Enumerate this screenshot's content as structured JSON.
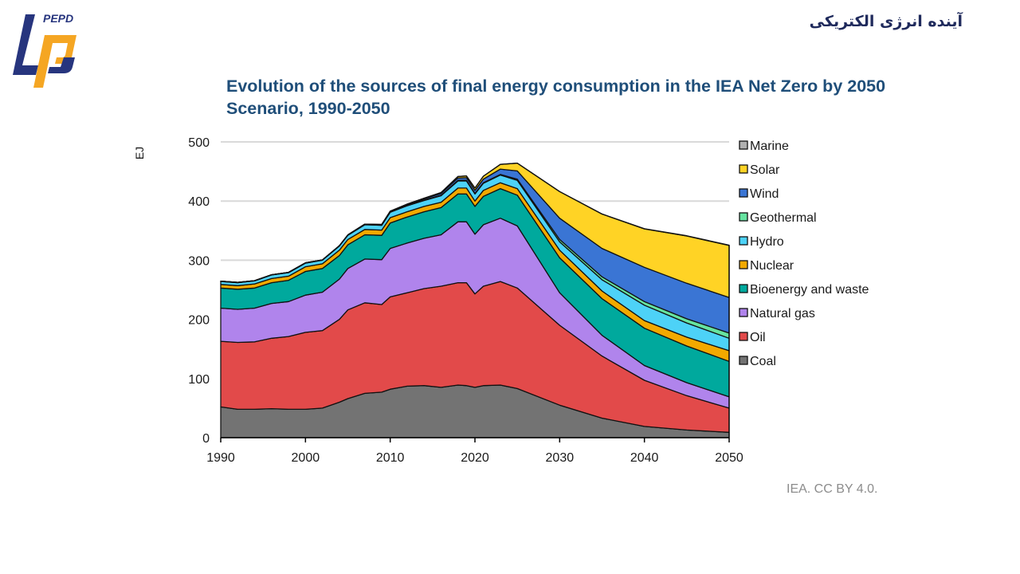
{
  "header": {
    "logo_text": "PEPD",
    "brand_name": "آینده انرژی الکتریکی"
  },
  "credit": "IEA. CC BY 4.0.",
  "colors": {
    "logo_blue": "#27357e",
    "logo_orange": "#f5a623",
    "title": "#1f4e79"
  },
  "chart_data": {
    "type": "area",
    "stacked": true,
    "title": "Evolution of the sources of final energy consumption in the IEA Net Zero by 2050 Scenario, 1990-2050",
    "xlabel": "",
    "ylabel": "EJ",
    "xlim": [
      1990,
      2050
    ],
    "ylim": [
      0,
      500
    ],
    "yticks": [
      0,
      100,
      200,
      300,
      400,
      500
    ],
    "xticks": [
      1990,
      2000,
      2010,
      2020,
      2030,
      2040,
      2050
    ],
    "grid": "horizontal",
    "legend_position": "right",
    "x": [
      1990,
      1992,
      1994,
      1996,
      1998,
      2000,
      2002,
      2004,
      2005,
      2007,
      2009,
      2010,
      2012,
      2014,
      2016,
      2018,
      2019,
      2020,
      2021,
      2023,
      2025,
      2030,
      2035,
      2040,
      2045,
      2050
    ],
    "series": [
      {
        "name": "Coal",
        "color": "#737373",
        "values": [
          52,
          48,
          48,
          49,
          48,
          48,
          50,
          60,
          66,
          75,
          77,
          82,
          87,
          88,
          85,
          89,
          88,
          85,
          88,
          89,
          83,
          55,
          33,
          19,
          13,
          9
        ]
      },
      {
        "name": "Oil",
        "color": "#e24a4a",
        "values": [
          111,
          113,
          114,
          119,
          123,
          130,
          131,
          140,
          150,
          153,
          148,
          156,
          158,
          164,
          171,
          173,
          174,
          158,
          168,
          175,
          170,
          135,
          105,
          78,
          58,
          41
        ]
      },
      {
        "name": "Natural gas",
        "color": "#b084ec",
        "values": [
          56,
          56,
          57,
          59,
          59,
          63,
          65,
          68,
          70,
          74,
          76,
          82,
          84,
          85,
          87,
          103,
          103,
          101,
          104,
          107,
          105,
          55,
          35,
          25,
          22,
          19
        ]
      },
      {
        "name": "Bioenergy and waste",
        "color": "#00a99d",
        "values": [
          34,
          34,
          34,
          35,
          36,
          40,
          40,
          40,
          40,
          41,
          41,
          43,
          44,
          45,
          46,
          47,
          47,
          47,
          48,
          50,
          52,
          59,
          62,
          63,
          62,
          60
        ]
      },
      {
        "name": "Nuclear",
        "color": "#f2a900",
        "values": [
          6,
          6,
          7,
          7,
          7,
          8,
          8,
          9,
          9,
          9,
          9,
          9,
          9,
          9,
          9,
          10,
          10,
          9,
          10,
          10,
          11,
          13,
          13,
          13,
          15,
          18
        ]
      },
      {
        "name": "Hydro",
        "color": "#4dd2f7",
        "values": [
          5,
          5,
          5,
          6,
          6,
          6,
          6,
          7,
          7,
          8,
          8,
          9,
          10,
          10,
          11,
          12,
          12,
          12,
          12,
          13,
          14,
          14,
          19,
          26,
          24,
          21
        ]
      },
      {
        "name": "Geothermal",
        "color": "#66e3a0",
        "values": [
          0.5,
          0.5,
          0.5,
          0.5,
          0.5,
          0.5,
          0.5,
          0.5,
          0.6,
          0.6,
          0.7,
          0.7,
          0.8,
          0.8,
          0.9,
          1,
          1,
          1,
          1,
          1,
          2,
          4,
          5,
          6,
          7,
          9
        ]
      },
      {
        "name": "Wind",
        "color": "#3a75d4",
        "values": [
          0,
          0,
          0,
          0,
          0,
          0,
          0,
          0.1,
          0.2,
          0.4,
          0.6,
          1,
          1.5,
          2,
          3,
          4,
          4.5,
          5,
          6,
          9,
          14,
          36,
          48,
          58,
          60,
          60
        ]
      },
      {
        "name": "Solar",
        "color": "#ffd325",
        "values": [
          0,
          0,
          0,
          0,
          0,
          0,
          0,
          0,
          0,
          0.1,
          0.2,
          0.3,
          0.6,
          1,
          1.5,
          2.5,
          3,
          4,
          5,
          8,
          13,
          45,
          58,
          65,
          80,
          88
        ]
      },
      {
        "name": "Marine",
        "color": "#b0b0b0",
        "values": [
          0,
          0,
          0,
          0,
          0,
          0,
          0,
          0,
          0,
          0,
          0,
          0,
          0,
          0,
          0,
          0,
          0,
          0,
          0,
          0,
          0,
          0.1,
          0.2,
          0.3,
          0.4,
          0.5
        ]
      }
    ],
    "legend_order": [
      "Marine",
      "Solar",
      "Wind",
      "Geothermal",
      "Hydro",
      "Nuclear",
      "Bioenergy and waste",
      "Natural gas",
      "Oil",
      "Coal"
    ]
  }
}
